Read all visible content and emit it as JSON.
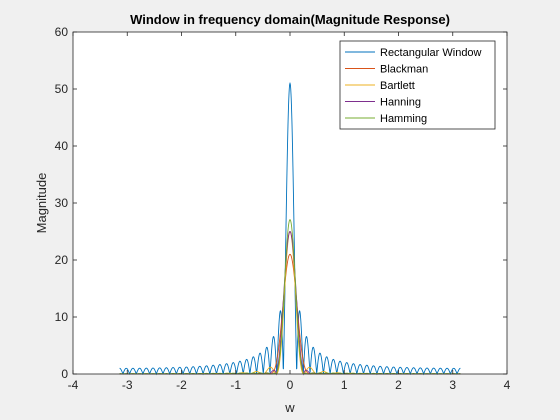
{
  "chart_data": {
    "type": "line",
    "title": "Window in frequency domain(Magnitude Response)",
    "xlabel": "w",
    "ylabel": "Magnitude",
    "xlim": [
      -4,
      4
    ],
    "ylim": [
      0,
      60
    ],
    "xticks": [
      -4,
      -3,
      -2,
      -1,
      0,
      1,
      2,
      3,
      4
    ],
    "yticks": [
      0,
      10,
      20,
      30,
      40,
      50,
      60
    ],
    "x_range": [
      -3.1416,
      3.1416
    ],
    "window_length": 51,
    "grid": false,
    "legend_position": "top-right",
    "series": [
      {
        "name": "Rectangular Window",
        "color": "#0072BD",
        "window": "rectangular",
        "peak": 51
      },
      {
        "name": "Blackman",
        "color": "#D95319",
        "window": "blackman",
        "peak": 21
      },
      {
        "name": "Bartlett",
        "color": "#EDB120",
        "window": "bartlett",
        "peak": 25
      },
      {
        "name": "Hanning",
        "color": "#7E2F8E",
        "window": "hanning",
        "peak": 25
      },
      {
        "name": "Hamming",
        "color": "#77AC30",
        "window": "hamming",
        "peak": 27
      }
    ]
  }
}
